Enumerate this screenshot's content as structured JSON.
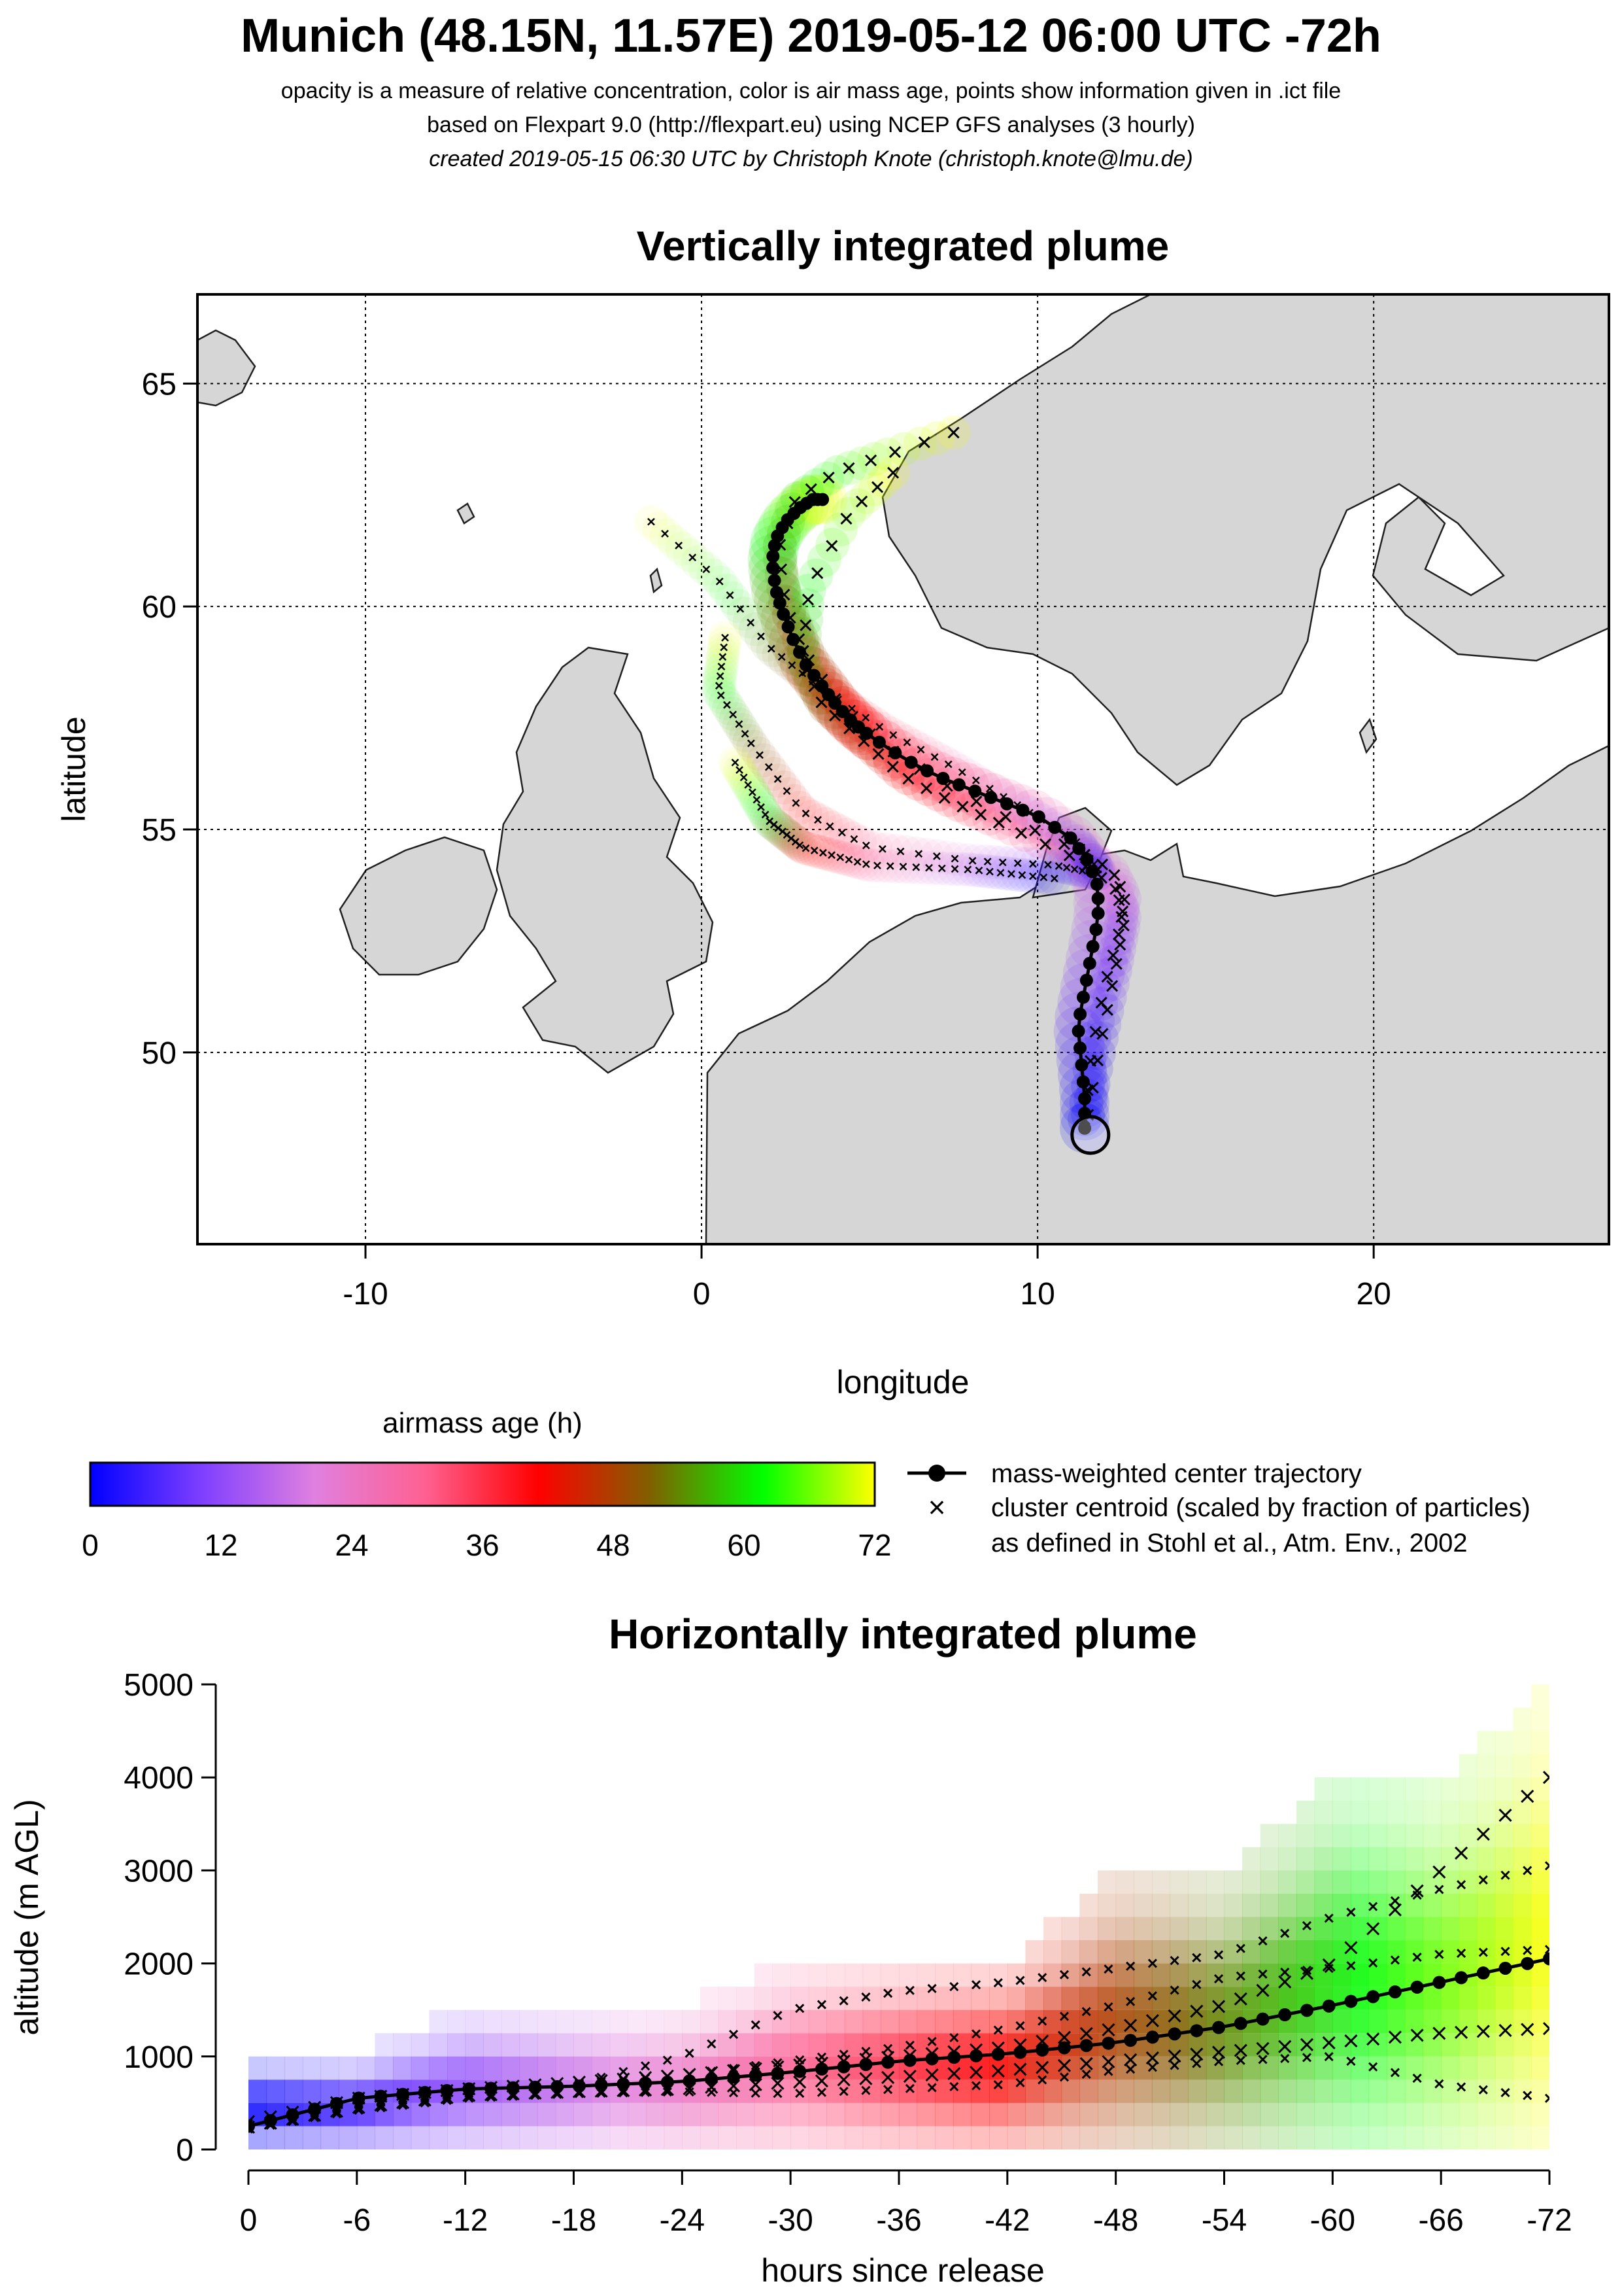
{
  "header": {
    "title": "Munich (48.15N, 11.57E) 2019-05-12 06:00 UTC -72h",
    "subtitle_1": "opacity is a measure of relative concentration, color is air mass age, points show information given in .ict file",
    "subtitle_2": "based on Flexpart 9.0 (http://flexpart.eu) using NCEP GFS analyses (3 hourly)",
    "subtitle_3": "created 2019-05-15 06:30 UTC by Christoph Knote (christoph.knote@lmu.de)"
  },
  "legend": {
    "colorbar_title": "airmass age (h)",
    "colorbar_ticks": [
      "0",
      "12",
      "24",
      "36",
      "48",
      "60",
      "72"
    ],
    "center_label": "mass-weighted center trajectory",
    "cluster_label_1": "cluster centroid (scaled by fraction of particles)",
    "cluster_label_2": "as defined in Stohl et al., Atm. Env., 2002",
    "colorbar_stops": [
      "#0000ff",
      "#7f3fff",
      "#e080e0",
      "#ff6090",
      "#ff0000",
      "#806000",
      "#00ff00",
      "#ffff00"
    ]
  },
  "chart_data": [
    {
      "type": "scatter",
      "title": "Vertically integrated plume",
      "xlabel": "longitude",
      "ylabel": "latitude",
      "xlim": [
        -15,
        27
      ],
      "ylim": [
        45.7,
        67
      ],
      "xticks": [
        -10,
        0,
        10,
        20
      ],
      "yticks": [
        50,
        55,
        60,
        65
      ],
      "grid": true,
      "release_point": {
        "lon": 11.57,
        "lat": 48.15
      },
      "center_trajectory": {
        "lon": [
          11.4,
          11.4,
          11.3,
          11.2,
          11.4,
          11.6,
          11.8,
          11.8,
          11.5,
          11.0,
          10.0,
          9.0,
          8.0,
          7.0,
          6.0,
          5.0,
          4.5,
          4.0,
          3.6,
          3.1,
          2.7,
          2.4,
          2.2,
          2.1,
          2.2,
          2.5,
          2.9,
          3.3,
          3.6
        ],
        "lat": [
          48.3,
          49.0,
          49.8,
          50.6,
          51.4,
          52.2,
          53.0,
          53.7,
          54.3,
          54.8,
          55.3,
          55.6,
          55.9,
          56.2,
          56.6,
          57.1,
          57.4,
          57.8,
          58.2,
          58.7,
          59.3,
          59.9,
          60.4,
          61.0,
          61.5,
          61.9,
          62.2,
          62.4,
          62.4
        ]
      },
      "cluster_tracks": [
        {
          "lon": [
            11.4,
            11.6,
            12.0,
            12.4,
            12.6,
            12.2,
            11.0,
            9.0,
            7.0,
            5.2,
            4.0,
            3.1,
            2.5,
            2.3,
            2.8,
            4.0,
            5.5,
            7.5
          ],
          "lat": [
            48.5,
            50.0,
            51.5,
            52.6,
            53.5,
            54.1,
            54.6,
            55.3,
            56.1,
            57.0,
            57.9,
            58.9,
            60.0,
            61.3,
            62.4,
            63.0,
            63.4,
            63.9
          ]
        },
        {
          "lon": [
            11.5,
            11.9,
            12.3,
            12.6,
            12.3,
            11.0,
            9.0,
            7.5,
            6.0,
            4.8,
            3.6,
            3.0,
            3.2,
            4.4,
            5.7
          ],
          "lat": [
            48.6,
            50.3,
            51.8,
            53.0,
            53.7,
            54.4,
            55.1,
            55.6,
            56.2,
            57.0,
            57.8,
            58.8,
            60.4,
            62.1,
            63.0
          ]
        },
        {
          "lon": [
            11.8,
            11.2,
            9.5,
            7.5,
            5.5,
            3.5,
            2.0,
            0.5,
            -1.5
          ],
          "lat": [
            54.1,
            54.7,
            55.5,
            56.4,
            57.2,
            58.2,
            59.1,
            60.6,
            61.9
          ]
        },
        {
          "lon": [
            11.8,
            10.5,
            8.0,
            5.0,
            3.0,
            1.5,
            0.5,
            0.7
          ],
          "lat": [
            54.0,
            54.2,
            54.3,
            54.6,
            55.4,
            56.9,
            58.1,
            59.3
          ]
        },
        {
          "lon": [
            10.5,
            8.0,
            5.0,
            3.0,
            2.0,
            1.0
          ],
          "lat": [
            53.9,
            54.1,
            54.2,
            54.6,
            55.2,
            56.5
          ]
        }
      ]
    },
    {
      "type": "scatter",
      "title": "Horizontally integrated plume",
      "xlabel": "hours since release",
      "ylabel": "altitude (m AGL)",
      "xlim": [
        0,
        -72
      ],
      "ylim": [
        0,
        5000
      ],
      "xticks": [
        0,
        -6,
        -12,
        -18,
        -24,
        -30,
        -36,
        -42,
        -48,
        -54,
        -60,
        -66,
        -72
      ],
      "yticks": [
        0,
        1000,
        2000,
        3000,
        4000,
        5000
      ],
      "center_trajectory": {
        "x": [
          0,
          -6,
          -12,
          -18,
          -24,
          -30,
          -36,
          -42,
          -48,
          -54,
          -60,
          -66,
          -72
        ],
        "y": [
          250,
          550,
          650,
          680,
          730,
          830,
          950,
          1030,
          1150,
          1320,
          1550,
          1800,
          2050
        ]
      },
      "cluster_tracks": [
        {
          "x": [
            0,
            -6,
            -12,
            -18,
            -24,
            -30,
            -36,
            -42,
            -48,
            -54,
            -60,
            -66,
            -72
          ],
          "y": [
            300,
            550,
            650,
            720,
            800,
            900,
            1000,
            1100,
            1300,
            1550,
            2000,
            3000,
            4000
          ]
        },
        {
          "x": [
            0,
            -6,
            -12,
            -18,
            -24,
            -30,
            -36,
            -42,
            -48,
            -54,
            -60,
            -66,
            -72
          ],
          "y": [
            280,
            500,
            620,
            700,
            1000,
            1500,
            1700,
            1800,
            1950,
            2100,
            2500,
            2800,
            3050
          ]
        },
        {
          "x": [
            0,
            -6,
            -12,
            -18,
            -24,
            -30,
            -36,
            -42,
            -48,
            -54,
            -60,
            -66,
            -72
          ],
          "y": [
            260,
            480,
            600,
            700,
            800,
            950,
            1100,
            1300,
            1550,
            1850,
            1950,
            2100,
            2150
          ]
        },
        {
          "x": [
            0,
            -6,
            -12,
            -18,
            -24,
            -30,
            -36,
            -42,
            -48,
            -54,
            -60,
            -66,
            -72
          ],
          "y": [
            240,
            450,
            580,
            620,
            650,
            720,
            780,
            850,
            950,
            1050,
            1150,
            1250,
            1300
          ]
        },
        {
          "x": [
            0,
            -6,
            -12,
            -18,
            -24,
            -30,
            -36,
            -42,
            -48,
            -54,
            -60,
            -66,
            -72
          ],
          "y": [
            220,
            420,
            550,
            600,
            620,
            600,
            650,
            700,
            850,
            950,
            1000,
            700,
            550
          ]
        }
      ],
      "plume_top": {
        "x": [
          0,
          -6,
          -12,
          -18,
          -24,
          -30,
          -36,
          -42,
          -48,
          -54,
          -60,
          -66,
          -72
        ],
        "y": [
          1000,
          1000,
          1500,
          1500,
          1500,
          2000,
          2000,
          2000,
          3000,
          3000,
          4000,
          4000,
          5000
        ]
      }
    }
  ]
}
